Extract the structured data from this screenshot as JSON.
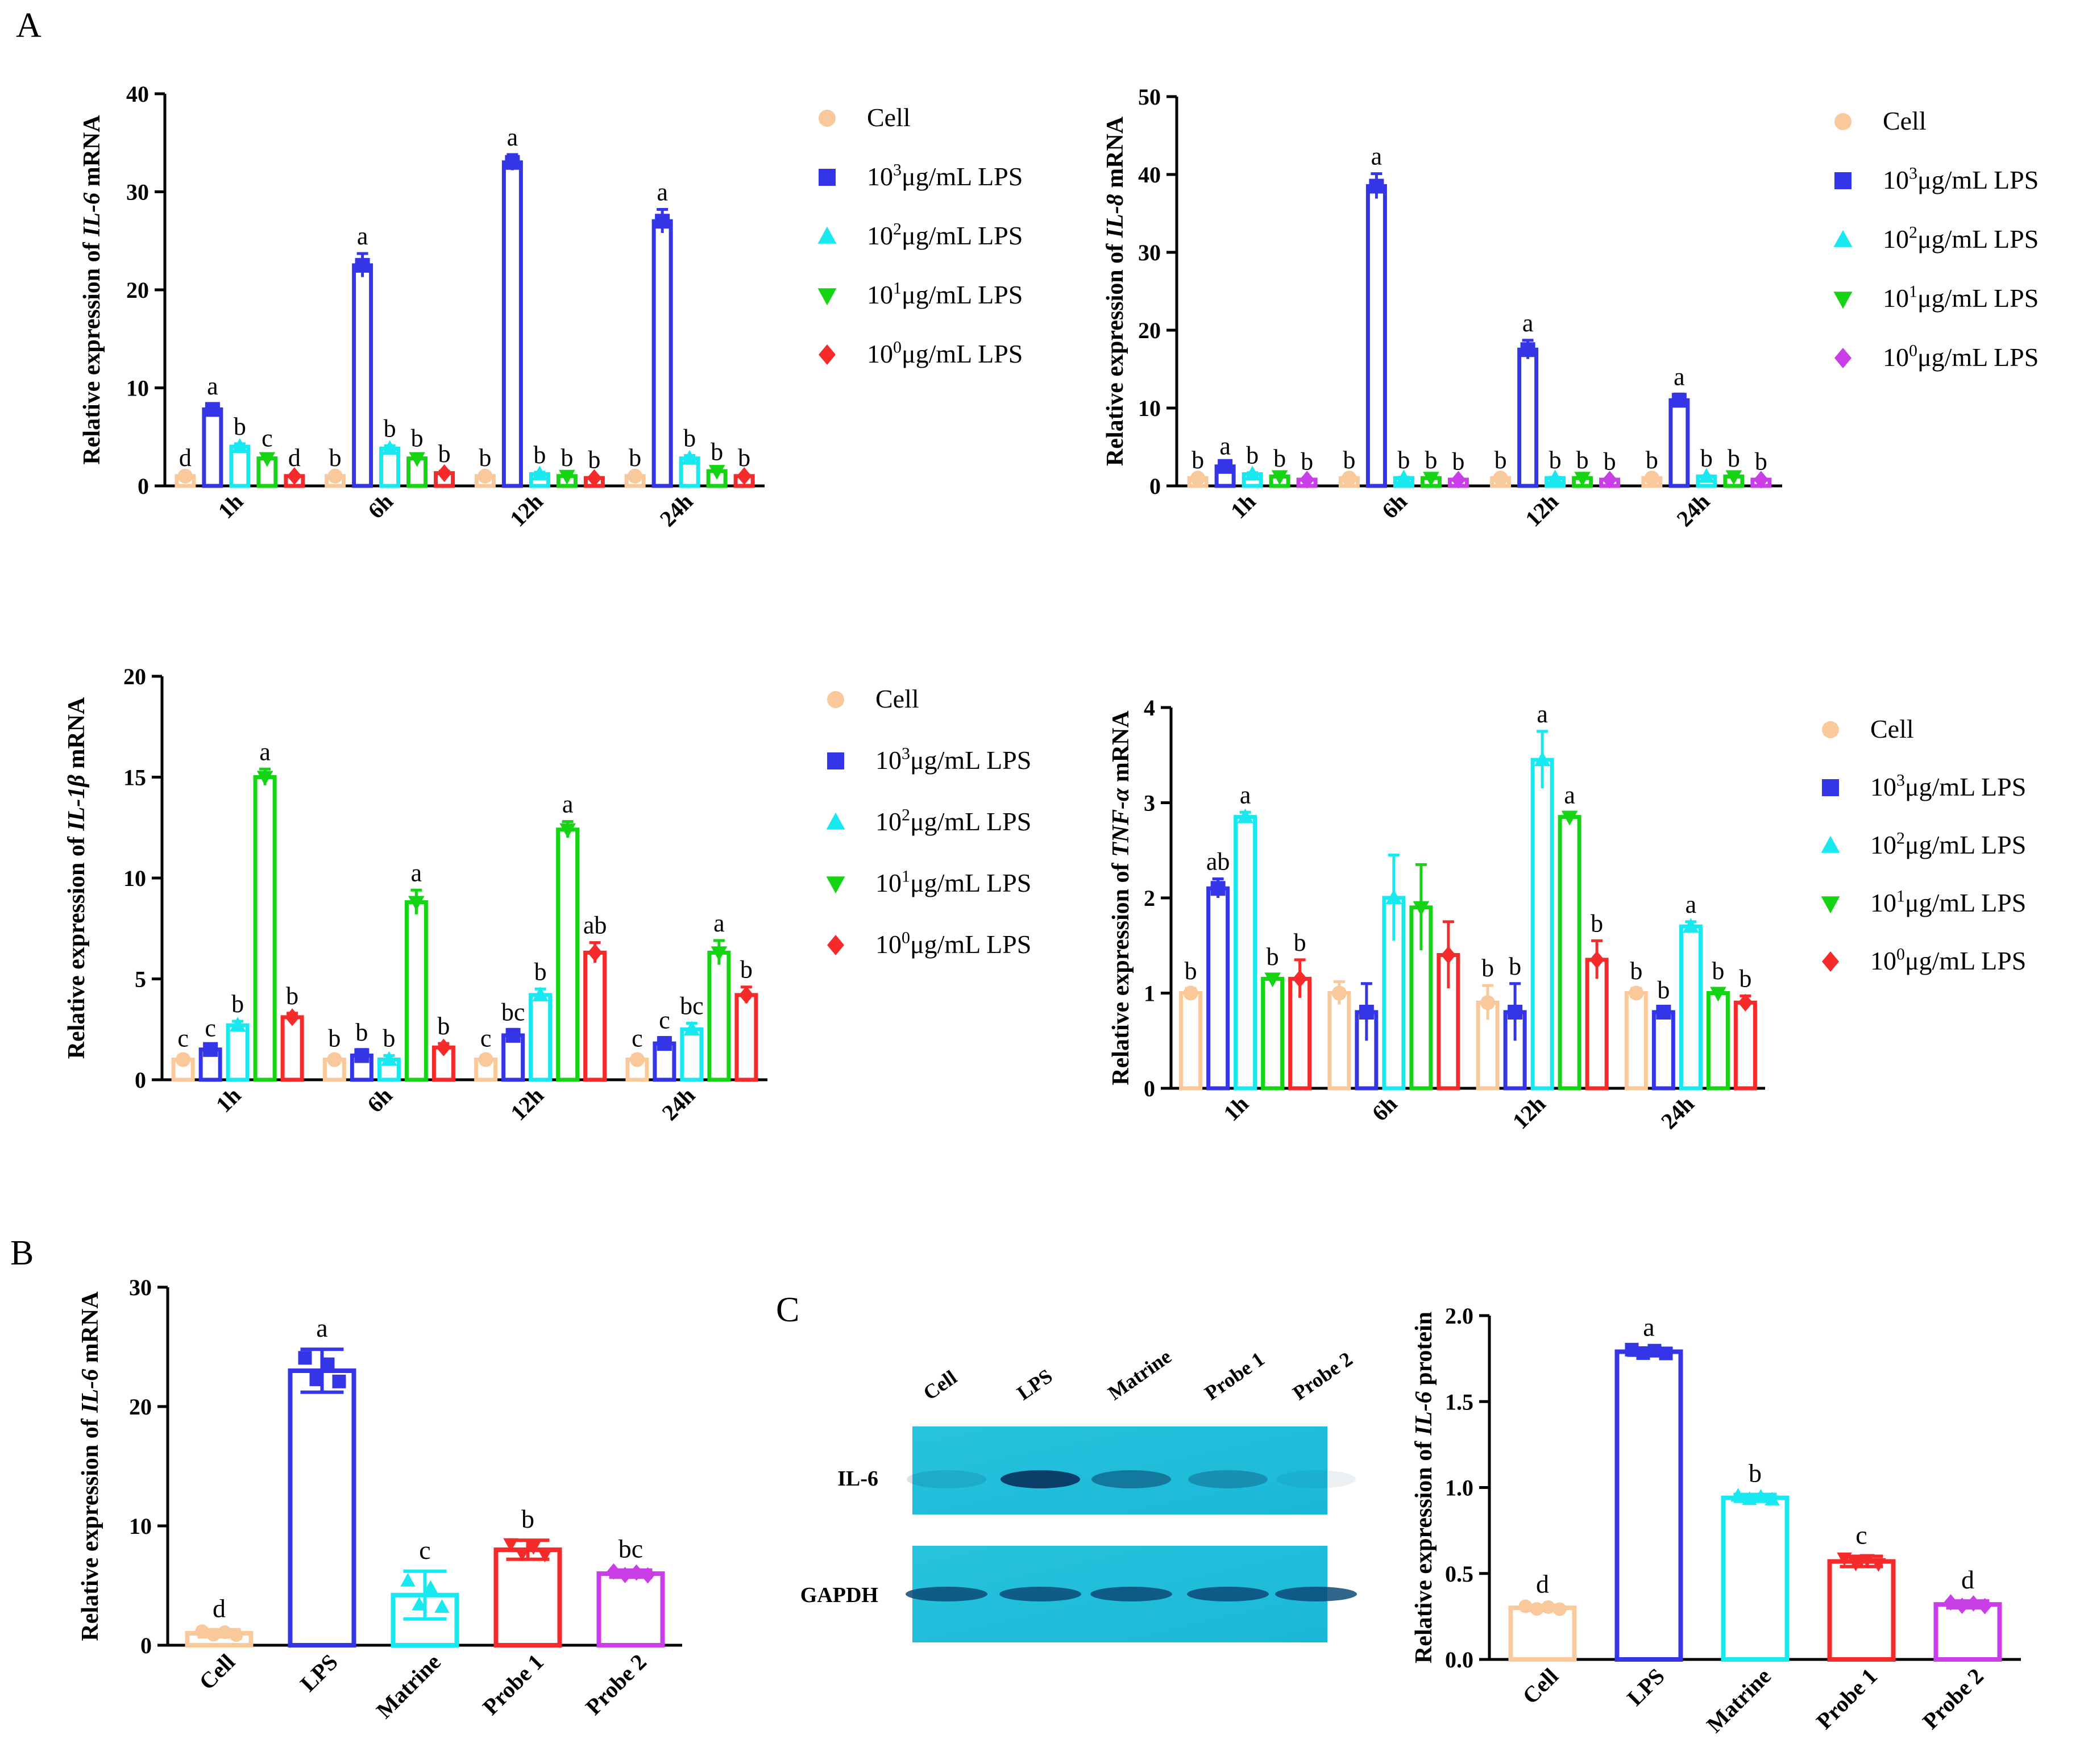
{
  "panel_labels": {
    "A": "A",
    "B": "B",
    "C": "C"
  },
  "legend_sets": {
    "setA": [
      "Cell",
      "10^3μg/mL LPS",
      "10^2μg/mL LPS",
      "10^1μg/mL LPS",
      "10^0μg/mL LPS"
    ]
  },
  "colors": {
    "cell": "#f9c89b",
    "lps3": "#3535e8",
    "lps2": "#18e8f0",
    "lps1": "#14d414",
    "lps0": "#f52a2a",
    "lps0_il8": "#c93ee6",
    "probe2": "#c93ee6"
  },
  "chart_data": [
    {
      "id": "il6",
      "type": "bar",
      "ylabel": {
        "pre": "Relative expression of ",
        "italic": "IL-6",
        "post": " mRNA"
      },
      "ylim": [
        0,
        40
      ],
      "yticks": [
        0,
        10,
        20,
        30,
        40
      ],
      "categories": [
        "1h",
        "6h",
        "12h",
        "24h"
      ],
      "legend": [
        "Cell",
        "10^3μg/mL LPS",
        "10^2μg/mL LPS",
        "10^1μg/mL LPS",
        "10^0μg/mL LPS"
      ],
      "series": [
        {
          "name": "Cell",
          "values": [
            1,
            1,
            1,
            1
          ],
          "err": [
            0.1,
            0.1,
            0.1,
            0.1
          ],
          "letters": [
            "d",
            "b",
            "b",
            "b"
          ]
        },
        {
          "name": "10^3μg/mL LPS",
          "values": [
            7.8,
            22.5,
            33,
            27
          ],
          "err": [
            0.6,
            1.2,
            0.8,
            1.2
          ],
          "letters": [
            "a",
            "a",
            "a",
            "a"
          ]
        },
        {
          "name": "10^2μg/mL LPS",
          "values": [
            4,
            3.8,
            1.2,
            2.8
          ],
          "err": [
            0.3,
            0.3,
            0.2,
            0.3
          ],
          "letters": [
            "b",
            "b",
            "b",
            "b"
          ]
        },
        {
          "name": "10^1μg/mL LPS",
          "values": [
            2.8,
            2.8,
            1,
            1.5
          ],
          "err": [
            0.3,
            0.3,
            0.1,
            0.2
          ],
          "letters": [
            "c",
            "b",
            "b",
            "b"
          ]
        },
        {
          "name": "10^0μg/mL LPS",
          "values": [
            1,
            1.3,
            0.8,
            1
          ],
          "err": [
            0.1,
            0.2,
            0.1,
            0.1
          ],
          "letters": [
            "d",
            "b",
            "b",
            "b"
          ]
        }
      ]
    },
    {
      "id": "il8",
      "type": "bar",
      "ylabel": {
        "pre": "Relative expression of ",
        "italic": "IL-8",
        "post": " mRNA"
      },
      "ylim": [
        0,
        50
      ],
      "yticks": [
        0,
        10,
        20,
        30,
        40,
        50
      ],
      "categories": [
        "1h",
        "6h",
        "12h",
        "24h"
      ],
      "legend": [
        "Cell",
        "10^3μg/mL LPS",
        "10^2μg/mL LPS",
        "10^1μg/mL LPS",
        "10^0μg/mL LPS"
      ],
      "series": [
        {
          "name": "Cell",
          "values": [
            1,
            1,
            1,
            1
          ],
          "err": [
            0.1,
            0.1,
            0.1,
            0.1
          ],
          "letters": [
            "b",
            "b",
            "b",
            "b"
          ]
        },
        {
          "name": "10^3μg/mL LPS",
          "values": [
            2.5,
            38.5,
            17.5,
            11
          ],
          "err": [
            0.4,
            1.6,
            1.2,
            0.8
          ],
          "letters": [
            "a",
            "a",
            "a",
            "a"
          ]
        },
        {
          "name": "10^2μg/mL LPS",
          "values": [
            1.5,
            1,
            1,
            1.2
          ],
          "err": [
            0.2,
            0.1,
            0.1,
            0.1
          ],
          "letters": [
            "b",
            "b",
            "b",
            "b"
          ]
        },
        {
          "name": "10^1μg/mL LPS",
          "values": [
            1.2,
            1,
            1,
            1.2
          ],
          "err": [
            0.1,
            0.1,
            0.1,
            0.1
          ],
          "letters": [
            "b",
            "b",
            "b",
            "b"
          ]
        },
        {
          "name": "10^0μg/mL LPS",
          "values": [
            0.8,
            0.8,
            0.8,
            0.8
          ],
          "err": [
            0.1,
            0.1,
            0.1,
            0.1
          ],
          "letters": [
            "b",
            "b",
            "b",
            "b"
          ]
        }
      ]
    },
    {
      "id": "il1b",
      "type": "bar",
      "ylabel": {
        "pre": "Relative expression of ",
        "italic": "IL-1β",
        "post": " mRNA"
      },
      "ylim": [
        0,
        20
      ],
      "yticks": [
        0,
        5,
        10,
        15,
        20
      ],
      "categories": [
        "1h",
        "6h",
        "12h",
        "24h"
      ],
      "legend": [
        "Cell",
        "10^3μg/mL LPS",
        "10^2μg/mL LPS",
        "10^1μg/mL LPS",
        "10^0μg/mL LPS"
      ],
      "series": [
        {
          "name": "Cell",
          "values": [
            1,
            1,
            1,
            1
          ],
          "err": [
            0.2,
            0.2,
            0.2,
            0.2
          ],
          "letters": [
            "c",
            "b",
            "c",
            "c"
          ]
        },
        {
          "name": "10^3μg/mL LPS",
          "values": [
            1.5,
            1.2,
            2.2,
            1.8
          ],
          "err": [
            0.2,
            0.3,
            0.3,
            0.3
          ],
          "letters": [
            "c",
            "b",
            "bc",
            "c"
          ]
        },
        {
          "name": "10^2μg/mL LPS",
          "values": [
            2.7,
            1,
            4.2,
            2.5
          ],
          "err": [
            0.2,
            0.2,
            0.3,
            0.3
          ],
          "letters": [
            "b",
            "b",
            "b",
            "bc"
          ]
        },
        {
          "name": "10^1μg/mL LPS",
          "values": [
            15,
            8.8,
            12.4,
            6.3
          ],
          "err": [
            0.4,
            0.6,
            0.4,
            0.6
          ],
          "letters": [
            "a",
            "a",
            "a",
            "a"
          ]
        },
        {
          "name": "10^0μg/mL LPS",
          "values": [
            3.1,
            1.6,
            6.3,
            4.2
          ],
          "err": [
            0.2,
            0.2,
            0.5,
            0.4
          ],
          "letters": [
            "b",
            "b",
            "ab",
            "b"
          ]
        }
      ]
    },
    {
      "id": "tnf",
      "type": "bar",
      "ylabel": {
        "pre": "Relative expression of ",
        "italic": "TNF-α",
        "post": " mRNA"
      },
      "ylim": [
        0,
        4
      ],
      "yticks": [
        0,
        1,
        2,
        3,
        4
      ],
      "categories": [
        "1h",
        "6h",
        "12h",
        "24h"
      ],
      "legend": [
        "Cell",
        "10^3μg/mL LPS",
        "10^2μg/mL LPS",
        "10^1μg/mL LPS",
        "10^0μg/mL LPS"
      ],
      "series": [
        {
          "name": "Cell",
          "values": [
            1,
            1,
            0.9,
            1
          ],
          "err": [
            0.05,
            0.12,
            0.18,
            0.05
          ],
          "letters": [
            "b",
            "",
            "b",
            "b"
          ]
        },
        {
          "name": "10^3μg/mL LPS",
          "values": [
            2.1,
            0.8,
            0.8,
            0.8
          ],
          "err": [
            0.1,
            0.3,
            0.3,
            0.05
          ],
          "letters": [
            "ab",
            "",
            "b",
            "b"
          ]
        },
        {
          "name": "10^2μg/mL LPS",
          "values": [
            2.85,
            2,
            3.45,
            1.7
          ],
          "err": [
            0.05,
            0.45,
            0.3,
            0.05
          ],
          "letters": [
            "a",
            "",
            "a",
            "a"
          ]
        },
        {
          "name": "10^1μg/mL LPS",
          "values": [
            1.15,
            1.9,
            2.85,
            1
          ],
          "err": [
            0.05,
            0.45,
            0.05,
            0.05
          ],
          "letters": [
            "b",
            "",
            "a",
            "b"
          ]
        },
        {
          "name": "10^0μg/mL LPS",
          "values": [
            1.15,
            1.4,
            1.35,
            0.9
          ],
          "err": [
            0.2,
            0.35,
            0.2,
            0.07
          ],
          "letters": [
            "b",
            "",
            "b",
            "b"
          ]
        }
      ]
    },
    {
      "id": "panelB",
      "type": "bar",
      "ylabel": {
        "pre": "Relative expression of ",
        "italic": "IL-6",
        "post": " mRNA"
      },
      "ylim": [
        0,
        30
      ],
      "yticks": [
        0,
        10,
        20,
        30
      ],
      "categories": [
        "Cell",
        "LPS",
        "Matrine",
        "Probe 1",
        "Probe 2"
      ],
      "values": [
        1,
        23,
        4.2,
        8,
        6
      ],
      "err": [
        0.3,
        1.8,
        2.0,
        0.8,
        0.3
      ],
      "letters": [
        "d",
        "a",
        "c",
        "b",
        "bc"
      ]
    },
    {
      "id": "panelC",
      "type": "bar",
      "ylabel": {
        "pre": "Relative expression of ",
        "italic": "IL-6",
        "post": " protein"
      },
      "ylim": [
        0,
        2.0
      ],
      "yticks": [
        "0.0",
        "0.5",
        "1.0",
        "1.5",
        "2.0"
      ],
      "categories": [
        "Cell",
        "LPS",
        "Matrine",
        "Probe 1",
        "Probe 2"
      ],
      "values": [
        0.3,
        1.79,
        0.94,
        0.57,
        0.32
      ],
      "err": [
        0.015,
        0.02,
        0.02,
        0.03,
        0.02
      ],
      "letters": [
        "d",
        "a",
        "b",
        "c",
        "d"
      ]
    }
  ],
  "blot": {
    "lanes": [
      "Cell",
      "LPS",
      "Matrine",
      "Probe 1",
      "Probe 2"
    ],
    "rows": [
      "IL-6",
      "GAPDH"
    ]
  }
}
